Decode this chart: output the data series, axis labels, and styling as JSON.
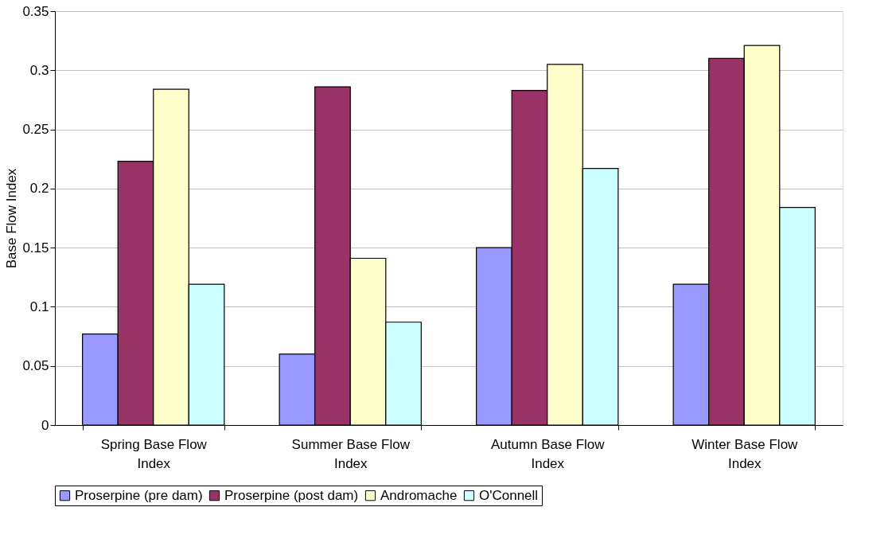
{
  "chart_data": {
    "type": "bar",
    "ylabel": "Base Flow Index",
    "categories": [
      "Spring Base Flow Index",
      "Summer Base Flow Index",
      "Autumn Base Flow Index",
      "Winter Base Flow Index"
    ],
    "series": [
      {
        "name": "Proserpine (pre dam)",
        "color": "#9999ff",
        "values": [
          0.077,
          0.06,
          0.15,
          0.119
        ]
      },
      {
        "name": "Proserpine (post dam)",
        "color": "#993366",
        "values": [
          0.223,
          0.286,
          0.283,
          0.31
        ]
      },
      {
        "name": "Andromache",
        "color": "#ffffcc",
        "values": [
          0.284,
          0.141,
          0.305,
          0.321
        ]
      },
      {
        "name": "O'Connell",
        "color": "#ccffff",
        "values": [
          0.119,
          0.087,
          0.217,
          0.184
        ]
      }
    ],
    "ylim": [
      0,
      0.35
    ],
    "yticks": [
      0,
      0.05,
      0.1,
      0.15,
      0.2,
      0.25,
      0.3,
      0.35
    ],
    "grid": "y",
    "legend": "bottom"
  }
}
